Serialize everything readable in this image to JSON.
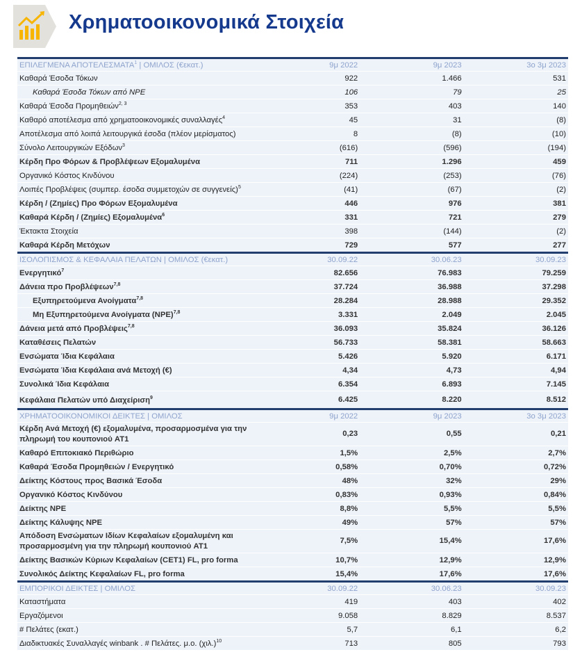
{
  "header": {
    "title": "Χρηματοοικονομικά Στοιχεία",
    "logo_icon": "bar-chart-growth-icon",
    "accent": "#f7b500",
    "title_color": "#15398c"
  },
  "sections": [
    {
      "title": "ΕΠΙΛΕΓΜΕΝΑ ΑΠΟΤΕΛΕΣΜΑΤΑ",
      "title_sup": "1",
      "title_rest": " | ΟΜΙΛΟΣ (€εκατ.)",
      "cols": [
        "9μ 2022",
        "9μ 2023",
        "3ο 3μ 2023"
      ],
      "rows": [
        {
          "label": "Καθαρά Έσοδα Τόκων",
          "values": [
            "922",
            "1.466",
            "531"
          ]
        },
        {
          "label": "Καθαρά Έσοδα Τόκων από NPE",
          "values": [
            "106",
            "79",
            "25"
          ],
          "style": "i ind"
        },
        {
          "label": "Καθαρά Έσοδα Προμηθειών",
          "sup": "2, 3",
          "values": [
            "353",
            "403",
            "140"
          ]
        },
        {
          "label": "Καθαρό αποτέλεσμα από χρηματοοικονομικές συναλλαγές",
          "sup": "4",
          "values": [
            "45",
            "31",
            "(8)"
          ]
        },
        {
          "label": "Αποτέλεσμα από λοιπά λειτουργικά έσοδα (πλέον μερίσματος)",
          "values": [
            "8",
            "(8)",
            "(10)"
          ]
        },
        {
          "label": "Σύνολο Λειτουργικών Εξόδων",
          "sup": "3",
          "values": [
            "(616)",
            "(596)",
            "(194)"
          ]
        },
        {
          "label": "Κέρδη Προ Φόρων & Προβλέψεων Εξομαλυμένα",
          "values": [
            "711",
            "1.296",
            "459"
          ],
          "style": "b"
        },
        {
          "label": "Οργανικό Κόστος Κινδύνου",
          "values": [
            "(224)",
            "(253)",
            "(76)"
          ]
        },
        {
          "label": "Λοιπές Προβλέψεις (συμπερ. έσοδα συμμετοχών σε συγγενείς)",
          "sup": "5",
          "values": [
            "(41)",
            "(67)",
            "(2)"
          ]
        },
        {
          "label": "Κέρδη / (Ζημίες) Προ Φόρων Εξομαλυμένα",
          "values": [
            "446",
            "976",
            "381"
          ],
          "style": "b"
        },
        {
          "label": "Καθαρά Κέρδη / (Ζημίες) Εξομαλυμένα",
          "sup": "6",
          "values": [
            "331",
            "721",
            "279"
          ],
          "style": "b"
        },
        {
          "label": "Έκτακτα Στοιχεία",
          "values": [
            "398",
            "(144)",
            "(2)"
          ]
        },
        {
          "label": "Καθαρά Κέρδη Μετόχων",
          "values": [
            "729",
            "577",
            "277"
          ],
          "style": "b"
        }
      ]
    },
    {
      "title": "ΙΣΟΛΟΠΙΣΜΟΣ & ΚΕΦΑΛΑΙΑ ΠΕΛΑΤΩΝ",
      "title_rest": " | ΟΜΙΛΟΣ (€εκατ.)",
      "cols": [
        "30.09.22",
        "30.06.23",
        "30.09.23"
      ],
      "rows": [
        {
          "label": "Ενεργητικό",
          "sup": "7",
          "values": [
            "82.656",
            "76.983",
            "79.259"
          ],
          "style": "b"
        },
        {
          "label": "Δάνεια προ Προβλέψεων",
          "sup": "7,8",
          "values": [
            "37.724",
            "36.988",
            "37.298"
          ],
          "style": "b"
        },
        {
          "label": "Εξυπηρετούμενα Ανοίγματα",
          "sup": "7,8",
          "values": [
            "28.284",
            "28.988",
            "29.352"
          ],
          "style": "b ind"
        },
        {
          "label": "Μη Εξυπηρετούμενα Ανοίγματα (NPE)",
          "sup": "7,8",
          "values": [
            "3.331",
            "2.049",
            "2.045"
          ],
          "style": "b ind"
        },
        {
          "label": "Δάνεια μετά από Προβλέψεις",
          "sup": "7,8",
          "values": [
            "36.093",
            "35.824",
            "36.126"
          ],
          "style": "b"
        },
        {
          "label": "Καταθέσεις Πελατών",
          "values": [
            "56.733",
            "58.381",
            "58.663"
          ],
          "style": "b"
        },
        {
          "label": "Ενσώματα Ίδια Κεφάλαια",
          "values": [
            "5.426",
            "5.920",
            "6.171"
          ],
          "style": "b"
        },
        {
          "label": "Ενσώματα Ίδια Κεφάλαια ανά Μετοχή (€)",
          "values": [
            "4,34",
            "4,73",
            "4,94"
          ],
          "style": "b"
        },
        {
          "label": "Συνολικά Ίδια Κεφάλαια",
          "values": [
            "6.354",
            "6.893",
            "7.145"
          ],
          "style": "b"
        },
        {
          "label": "Κεφάλαια Πελατών υπό Διαχείριση",
          "sup": "9",
          "values": [
            "6.425",
            "8.220",
            "8.512"
          ],
          "style": "b tall"
        }
      ]
    },
    {
      "title": "ΧΡΗΜΑΤΟΟΙΚΟΝΟΜΙΚΟΙ ΔΕΙΚΤΕΣ",
      "title_rest": " | ΟΜΙΛΟΣ",
      "cols": [
        "9μ 2022",
        "9μ 2023",
        "3ο 3μ 2023"
      ],
      "rows": [
        {
          "label": "Κέρδη Ανά Μετοχή (€) εξομαλυμένα, προσαρμοσμένα για την πληρωμή του κουπονιού AT1",
          "values": [
            "0,23",
            "0,55",
            "0,21"
          ],
          "style": "b two"
        },
        {
          "label": "Καθαρό Επιτοκιακό Περιθώριο",
          "values": [
            "1,5%",
            "2,5%",
            "2,7%"
          ],
          "style": "b"
        },
        {
          "label": "Καθαρά Έσοδα Προμηθειών / Ενεργητικό",
          "values": [
            "0,58%",
            "0,70%",
            "0,72%"
          ],
          "style": "b"
        },
        {
          "label": "Δείκτης Κόστους προς Βασικά  Έσοδα",
          "values": [
            "48%",
            "32%",
            "29%"
          ],
          "style": "b"
        },
        {
          "label": "Οργανικό Κόστος Κινδύνου",
          "values": [
            "0,83%",
            "0,93%",
            "0,84%"
          ],
          "style": "b"
        },
        {
          "label": "Δείκτης NPE",
          "values": [
            "8,8%",
            "5,5%",
            "5,5%"
          ],
          "style": "b"
        },
        {
          "label": "Δείκτης Κάλυψης NPE",
          "values": [
            "49%",
            "57%",
            "57%"
          ],
          "style": "b"
        },
        {
          "label": "Απόδοση Ενσώματων Ιδίων Κεφαλαίων εξομαλυμένη και προσαρμοσμένη για την πληρωμή κουπονιού AT1",
          "values": [
            "7,5%",
            "15,4%",
            "17,6%"
          ],
          "style": "b two"
        },
        {
          "label": "Δείκτης Βασικών Κύριων Κεφαλαίων (CET1) FL, pro forma",
          "values": [
            "10,7%",
            "12,9%",
            "12,9%"
          ],
          "style": "b"
        },
        {
          "label": "Συνολικός Δείκτης Κεφαλαίων FL, pro forma",
          "values": [
            "15,4%",
            "17,6%",
            "17,6%"
          ],
          "style": "b"
        }
      ]
    },
    {
      "title": "ΕΜΠΟΡΙΚΟΙ ΔΕΙΚΤΕΣ",
      "title_rest": " | ΟΜΙΛΟΣ",
      "cols": [
        "30.09.22",
        "30.06.23",
        "30.09.23"
      ],
      "rows": [
        {
          "label": "Καταστήματα",
          "values": [
            "419",
            "403",
            "402"
          ]
        },
        {
          "label": "Εργαζόμενοι",
          "values": [
            "9.058",
            "8.829",
            "8.537"
          ]
        },
        {
          "label": "# Πελάτες (εκατ.)",
          "values": [
            "5,7",
            "6,1",
            "6,2"
          ]
        },
        {
          "label": "Διαδικτυακές Συναλλαγές winbank . # Πελάτες. μ.ο. (χιλ.)",
          "sup": "10",
          "values": [
            "713",
            "805",
            "793"
          ]
        }
      ]
    }
  ]
}
